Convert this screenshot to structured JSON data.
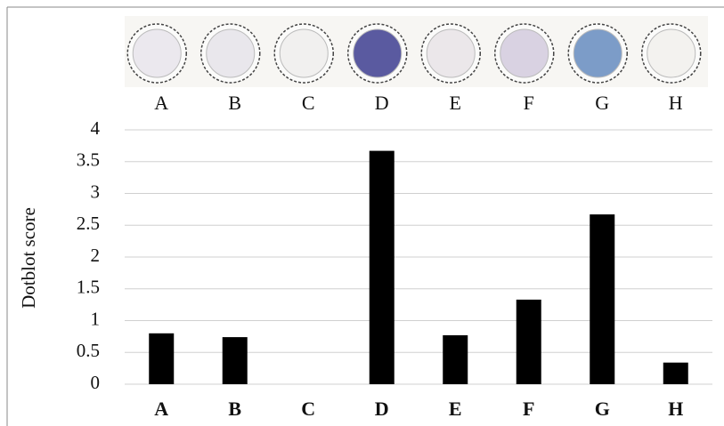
{
  "chart_data": {
    "type": "bar",
    "y_label": "Dotblot score",
    "categories": [
      "A",
      "B",
      "C",
      "D",
      "E",
      "F",
      "G",
      "H"
    ],
    "values": [
      0.8,
      0.74,
      0,
      3.67,
      0.77,
      1.33,
      2.67,
      0.34
    ],
    "color": "#000000",
    "ylim": [
      0,
      4
    ],
    "yticks": [
      0,
      0.5,
      1,
      1.5,
      2,
      2.5,
      3,
      3.5,
      4
    ],
    "grid": true
  }
}
